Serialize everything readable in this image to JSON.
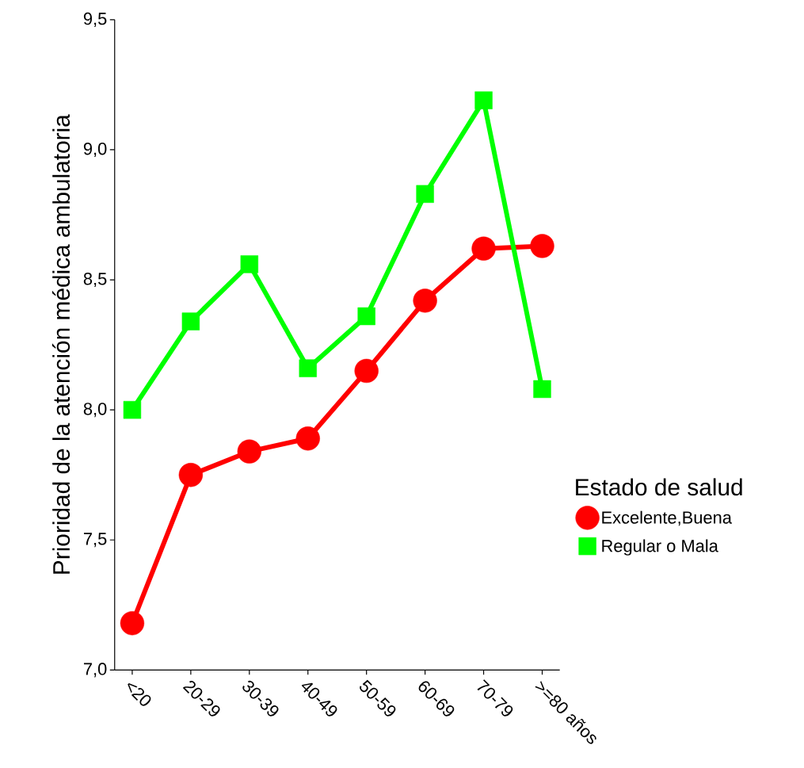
{
  "chart_data": {
    "type": "line",
    "ylabel": "Prioridad de la atención médica ambulatoria",
    "legend_title": "Estado de salud",
    "legend": "right",
    "line_style": "solid",
    "categories": [
      "<20",
      "20-29",
      "30-39",
      "40-49",
      "50-59",
      "60-69",
      "70-79",
      ">=80 años"
    ],
    "ylim": [
      7.0,
      9.5
    ],
    "yticks": [
      {
        "value": 7.0,
        "label": "7,0"
      },
      {
        "value": 7.5,
        "label": "7,5"
      },
      {
        "value": 8.0,
        "label": "8,0"
      },
      {
        "value": 8.5,
        "label": "8,5"
      },
      {
        "value": 9.0,
        "label": "9,0"
      },
      {
        "value": 9.5,
        "label": "9,5"
      }
    ],
    "series": [
      {
        "name": "Excelente,Buena",
        "color": "#ff0000",
        "marker": "circle",
        "values": [
          7.18,
          7.75,
          7.84,
          7.89,
          8.15,
          8.42,
          8.62,
          8.63
        ]
      },
      {
        "name": "Regular o Mala",
        "color": "#00ff00",
        "marker": "square",
        "values": [
          8.0,
          8.34,
          8.56,
          8.16,
          8.36,
          8.83,
          9.19,
          8.08
        ]
      }
    ]
  }
}
